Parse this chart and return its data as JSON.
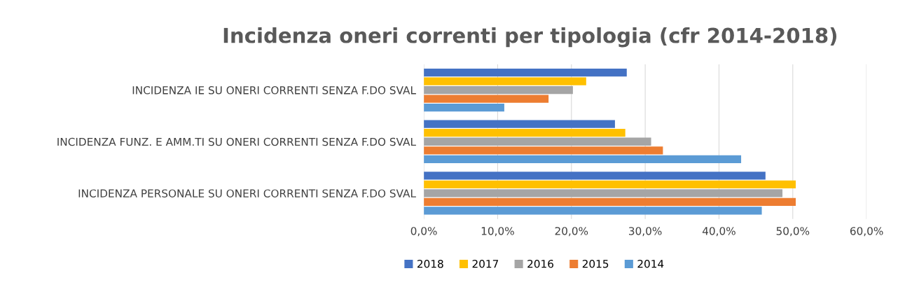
{
  "chart_data": {
    "type": "bar",
    "orientation": "horizontal",
    "title": "Incidenza oneri correnti per tipologia (cfr 2014-2018)",
    "categories": [
      "INCIDENZA IE SU ONERI CORRENTI SENZA F.DO SVAL",
      "INCIDENZA FUNZ. E AMM.TI SU ONERI CORRENTI SENZA F.DO SVAL",
      "INCIDENZA PERSONALE SU ONERI CORRENTI SENZA F.DO SVAL"
    ],
    "series": [
      {
        "name": "2018",
        "color": "#4472c4",
        "values": [
          27.5,
          25.9,
          46.3
        ]
      },
      {
        "name": "2017",
        "color": "#ffc000",
        "values": [
          22.0,
          27.3,
          50.4
        ]
      },
      {
        "name": "2016",
        "color": "#a5a5a5",
        "values": [
          20.2,
          30.8,
          48.6
        ]
      },
      {
        "name": "2015",
        "color": "#ed7d31",
        "values": [
          16.9,
          32.4,
          50.4
        ]
      },
      {
        "name": "2014",
        "color": "#5b9bd5",
        "values": [
          10.9,
          43.0,
          45.8
        ]
      }
    ],
    "xlim": [
      0,
      60
    ],
    "xticks": [
      {
        "value": 0,
        "label": "0,0%"
      },
      {
        "value": 10,
        "label": "10,0%"
      },
      {
        "value": 20,
        "label": "20,0%"
      },
      {
        "value": 30,
        "label": "30,0%"
      },
      {
        "value": 40,
        "label": "40,0%"
      },
      {
        "value": 50,
        "label": "50,0%"
      },
      {
        "value": 60,
        "label": "60,0%"
      }
    ],
    "grid": "x",
    "legend": "bottom"
  }
}
